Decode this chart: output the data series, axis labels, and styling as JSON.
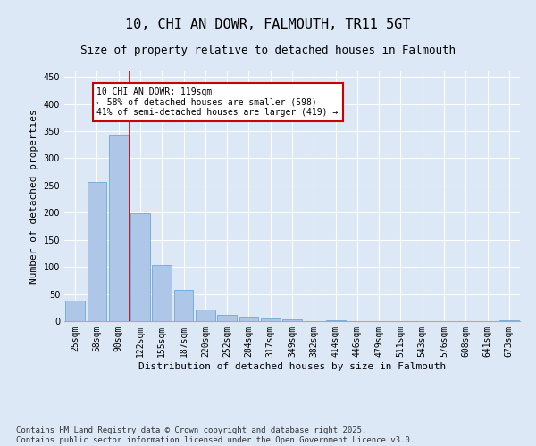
{
  "title": "10, CHI AN DOWR, FALMOUTH, TR11 5GT",
  "subtitle": "Size of property relative to detached houses in Falmouth",
  "xlabel": "Distribution of detached houses by size in Falmouth",
  "ylabel": "Number of detached properties",
  "footer": "Contains HM Land Registry data © Crown copyright and database right 2025.\nContains public sector information licensed under the Open Government Licence v3.0.",
  "categories": [
    "25sqm",
    "58sqm",
    "90sqm",
    "122sqm",
    "155sqm",
    "187sqm",
    "220sqm",
    "252sqm",
    "284sqm",
    "317sqm",
    "349sqm",
    "382sqm",
    "414sqm",
    "446sqm",
    "479sqm",
    "511sqm",
    "543sqm",
    "576sqm",
    "608sqm",
    "641sqm",
    "673sqm"
  ],
  "values": [
    37,
    256,
    343,
    198,
    104,
    57,
    21,
    11,
    9,
    5,
    3,
    0,
    2,
    0,
    0,
    0,
    0,
    0,
    0,
    0,
    1
  ],
  "bar_color": "#aec6e8",
  "bar_edge_color": "#5a9fd4",
  "vline_x_index": 2,
  "vline_color": "#cc0000",
  "annotation_text": "10 CHI AN DOWR: 119sqm\n← 58% of detached houses are smaller (598)\n41% of semi-detached houses are larger (419) →",
  "annotation_box_color": "#ffffff",
  "annotation_box_edge_color": "#cc0000",
  "ylim": [
    0,
    460
  ],
  "yticks": [
    0,
    50,
    100,
    150,
    200,
    250,
    300,
    350,
    400,
    450
  ],
  "bg_color": "#dce8f5",
  "plot_bg_color": "#dce8f5",
  "title_fontsize": 11,
  "subtitle_fontsize": 9,
  "axis_label_fontsize": 8,
  "tick_fontsize": 7,
  "footer_fontsize": 6.5
}
